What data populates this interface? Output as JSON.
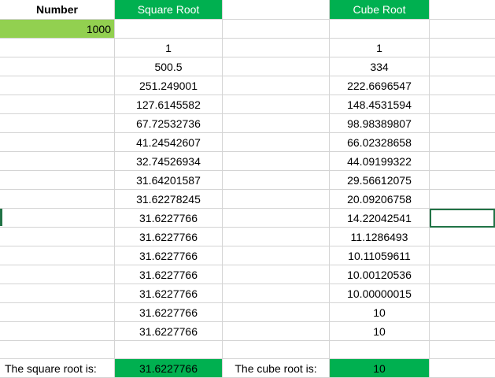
{
  "headers": {
    "number": "Number",
    "square_root": "Square Root",
    "cube_root": "Cube Root"
  },
  "input": {
    "number": "1000"
  },
  "iterations": [
    {
      "sqrt": "1",
      "cbrt": "1"
    },
    {
      "sqrt": "500.5",
      "cbrt": "334"
    },
    {
      "sqrt": "251.249001",
      "cbrt": "222.6696547"
    },
    {
      "sqrt": "127.6145582",
      "cbrt": "148.4531594"
    },
    {
      "sqrt": "67.72532736",
      "cbrt": "98.98389807"
    },
    {
      "sqrt": "41.24542607",
      "cbrt": "66.02328658"
    },
    {
      "sqrt": "32.74526934",
      "cbrt": "44.09199322"
    },
    {
      "sqrt": "31.64201587",
      "cbrt": "29.56612075"
    },
    {
      "sqrt": "31.62278245",
      "cbrt": "20.09206758"
    },
    {
      "sqrt": "31.6227766",
      "cbrt": "14.22042541"
    },
    {
      "sqrt": "31.6227766",
      "cbrt": "11.1286493"
    },
    {
      "sqrt": "31.6227766",
      "cbrt": "10.11059611"
    },
    {
      "sqrt": "31.6227766",
      "cbrt": "10.00120536"
    },
    {
      "sqrt": "31.6227766",
      "cbrt": "10.00000015"
    },
    {
      "sqrt": "31.6227766",
      "cbrt": "10"
    },
    {
      "sqrt": "31.6227766",
      "cbrt": "10"
    }
  ],
  "results": {
    "square_label": "The square root is:",
    "square_value": "31.6227766",
    "cube_label": "The cube root is:",
    "cube_value": "10"
  },
  "colors": {
    "header_green": "#00b050",
    "input_green": "#92d050",
    "selection": "#217346"
  }
}
